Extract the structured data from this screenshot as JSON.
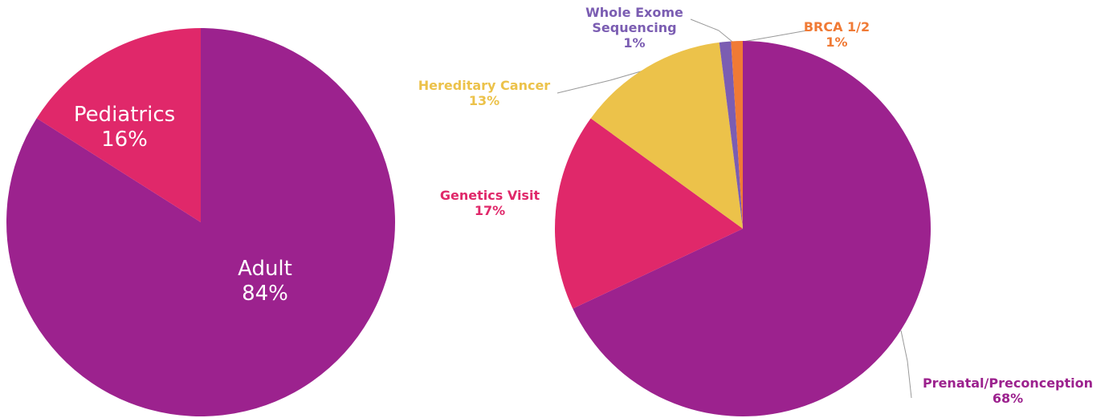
{
  "chart_data": [
    {
      "type": "pie",
      "categories": [
        "Adult",
        "Pediatrics"
      ],
      "values": [
        84,
        16
      ],
      "value_labels": [
        "84%",
        "16%"
      ],
      "colors": [
        "#9c228e",
        "#e0286a"
      ]
    },
    {
      "type": "pie",
      "categories": [
        "Prenatal/Preconception",
        "Genetics Visit",
        "Hereditary Cancer",
        "Whole Exome Sequencing",
        "BRCA 1/2"
      ],
      "values": [
        68,
        17,
        13,
        1,
        1
      ],
      "value_labels": [
        "68%",
        "17%",
        "13%",
        "1%",
        "1%"
      ],
      "colors": [
        "#9c228e",
        "#e0286a",
        "#ecc24a",
        "#7b5db2",
        "#f07a35"
      ]
    }
  ]
}
